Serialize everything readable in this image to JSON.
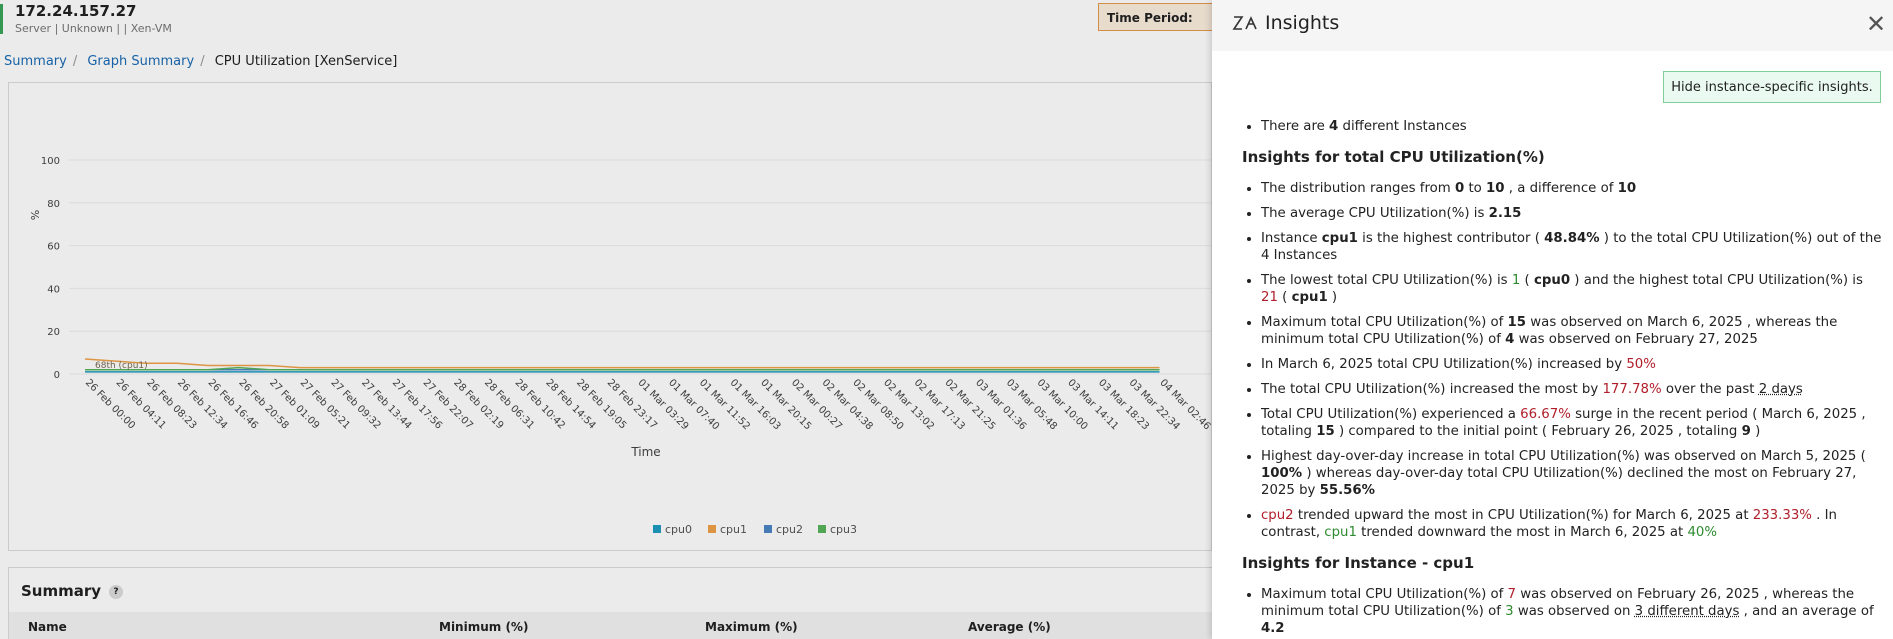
{
  "header": {
    "host": "172.24.157.27",
    "subtitle": "Server | Unknown |  | Xen-VM",
    "time_period_label": "Time Period:"
  },
  "breadcrumb": [
    "Summary",
    "Graph Summary",
    "CPU Utilization [XenService]"
  ],
  "chart": {
    "type": "line",
    "y_label": "%",
    "x_label": "Time",
    "annotation": "68th (cpu1)",
    "ylim": [
      0,
      100
    ],
    "yticks": [
      0,
      20,
      40,
      60,
      80,
      100
    ],
    "categories": [
      "26 Feb 00:00",
      "26 Feb 04:11",
      "26 Feb 08:23",
      "26 Feb 12:34",
      "26 Feb 16:46",
      "26 Feb 20:58",
      "27 Feb 01:09",
      "27 Feb 05:21",
      "27 Feb 09:32",
      "27 Feb 13:44",
      "27 Feb 17:56",
      "27 Feb 22:07",
      "28 Feb 02:19",
      "28 Feb 06:31",
      "28 Feb 10:42",
      "28 Feb 14:54",
      "28 Feb 19:05",
      "28 Feb 23:17",
      "01 Mar 03:29",
      "01 Mar 07:40",
      "01 Mar 11:52",
      "01 Mar 16:03",
      "01 Mar 20:15",
      "02 Mar 00:27",
      "02 Mar 04:38",
      "02 Mar 08:50",
      "02 Mar 13:02",
      "02 Mar 17:13",
      "02 Mar 21:25",
      "03 Mar 01:36",
      "03 Mar 05:48",
      "03 Mar 10:00",
      "03 Mar 14:11",
      "03 Mar 18:23",
      "03 Mar 22:34",
      "04 Mar 02:46"
    ],
    "series": [
      {
        "name": "cpu0",
        "color": "#1f9bc0",
        "values": [
          1,
          1,
          1,
          1,
          1,
          1,
          1,
          1,
          1,
          1,
          1,
          1,
          1,
          1,
          1,
          1,
          1,
          1,
          1,
          1,
          1,
          1,
          1,
          1,
          1,
          1,
          1,
          1,
          1,
          1,
          1,
          1,
          1,
          1,
          1,
          1
        ]
      },
      {
        "name": "cpu1",
        "color": "#f0a24a",
        "values": [
          7,
          6,
          5,
          5,
          4,
          4,
          4,
          3,
          3,
          3,
          3,
          3,
          3,
          3,
          3,
          3,
          3,
          3,
          3,
          3,
          3,
          3,
          3,
          3,
          3,
          3,
          3,
          3,
          3,
          3,
          3,
          3,
          3,
          3,
          3,
          3
        ]
      },
      {
        "name": "cpu2",
        "color": "#4c86c6",
        "values": [
          2,
          2,
          2,
          2,
          2,
          2,
          2,
          2,
          2,
          2,
          2,
          2,
          2,
          2,
          2,
          2,
          2,
          2,
          2,
          2,
          2,
          2,
          2,
          2,
          2,
          2,
          2,
          2,
          2,
          2,
          2,
          2,
          2,
          2,
          2,
          2
        ]
      },
      {
        "name": "cpu3",
        "color": "#59b35a",
        "values": [
          2,
          2,
          2,
          2,
          2,
          3,
          2,
          2,
          2,
          2,
          2,
          2,
          2,
          2,
          2,
          2,
          2,
          2,
          2,
          2,
          2,
          2,
          2,
          2,
          2,
          2,
          2,
          2,
          2,
          2,
          2,
          2,
          2,
          2,
          2,
          2
        ]
      }
    ]
  },
  "summary": {
    "title": "Summary",
    "help": "?",
    "columns": [
      "Name",
      "Minimum (%)",
      "Maximum (%)",
      "Average (%)"
    ]
  },
  "insights": {
    "title": "Insights",
    "toggle": "Hide instance-specific insights.",
    "intro": [
      [
        "There are ",
        {
          "t": "4",
          "s": "b"
        },
        " different Instances"
      ]
    ],
    "sections": [
      {
        "heading": "Insights for total CPU Utilization(%)",
        "items": [
          [
            "The distribution ranges from ",
            {
              "t": "0",
              "s": "b"
            },
            " to ",
            {
              "t": "10",
              "s": "b"
            },
            " , a difference of ",
            {
              "t": "10",
              "s": "b"
            }
          ],
          [
            "The average CPU Utilization(%) is ",
            {
              "t": "2.15",
              "s": "b"
            }
          ],
          [
            "Instance ",
            {
              "t": "cpu1",
              "s": "b"
            },
            " is the highest contributor ( ",
            {
              "t": "48.84%",
              "s": "b"
            },
            " ) to the total CPU Utilization(%) out of the 4 Instances"
          ],
          [
            "The lowest total CPU Utilization(%) is ",
            {
              "t": "1",
              "s": "g"
            },
            " ( ",
            {
              "t": "cpu0",
              "s": "b"
            },
            " ) and the highest total CPU Utilization(%) is ",
            {
              "t": "21",
              "s": "r"
            },
            " ( ",
            {
              "t": "cpu1",
              "s": "b"
            },
            " )"
          ],
          [
            "Maximum total CPU Utilization(%) of ",
            {
              "t": "15",
              "s": "b"
            },
            " was observed on March 6, 2025 , whereas the minimum total CPU Utilization(%) of ",
            {
              "t": "4",
              "s": "b"
            },
            " was observed on February 27, 2025"
          ],
          [
            "In March 6, 2025 total CPU Utilization(%) increased by ",
            {
              "t": "50%",
              "s": "r"
            }
          ],
          [
            "The total CPU Utilization(%) increased the most by ",
            {
              "t": "177.78%",
              "s": "r"
            },
            " over the past ",
            {
              "t": "2 days",
              "s": "u"
            }
          ],
          [
            "Total CPU Utilization(%) experienced a ",
            {
              "t": "66.67%",
              "s": "r"
            },
            " surge in the recent period ( March 6, 2025 , totaling ",
            {
              "t": "15",
              "s": "b"
            },
            " ) compared to the initial point ( February 26, 2025 , totaling ",
            {
              "t": "9",
              "s": "b"
            },
            " )"
          ],
          [
            "Highest day-over-day increase in total CPU Utilization(%) was observed on March 5, 2025 ( ",
            {
              "t": "100%",
              "s": "b"
            },
            " ) whereas day-over-day total CPU Utilization(%) declined the most on February 27, 2025 by ",
            {
              "t": "55.56%",
              "s": "b"
            }
          ],
          [
            {
              "t": "cpu2",
              "s": "r"
            },
            " trended upward the most in CPU Utilization(%) for March 6, 2025 at ",
            {
              "t": "233.33%",
              "s": "r"
            },
            " . In contrast, ",
            {
              "t": "cpu1",
              "s": "g"
            },
            " trended downward the most in March 6, 2025 at ",
            {
              "t": "40%",
              "s": "g"
            }
          ]
        ]
      },
      {
        "heading": "Insights for Instance - cpu1",
        "items": [
          [
            "Maximum total CPU Utilization(%) of ",
            {
              "t": "7",
              "s": "r"
            },
            " was observed on February 26, 2025 , whereas the minimum total CPU Utilization(%) of ",
            {
              "t": "3",
              "s": "g"
            },
            " was observed on ",
            {
              "t": "3 different days",
              "s": "u"
            },
            " , and an average of ",
            {
              "t": "4.2",
              "s": "b"
            }
          ]
        ]
      }
    ]
  }
}
